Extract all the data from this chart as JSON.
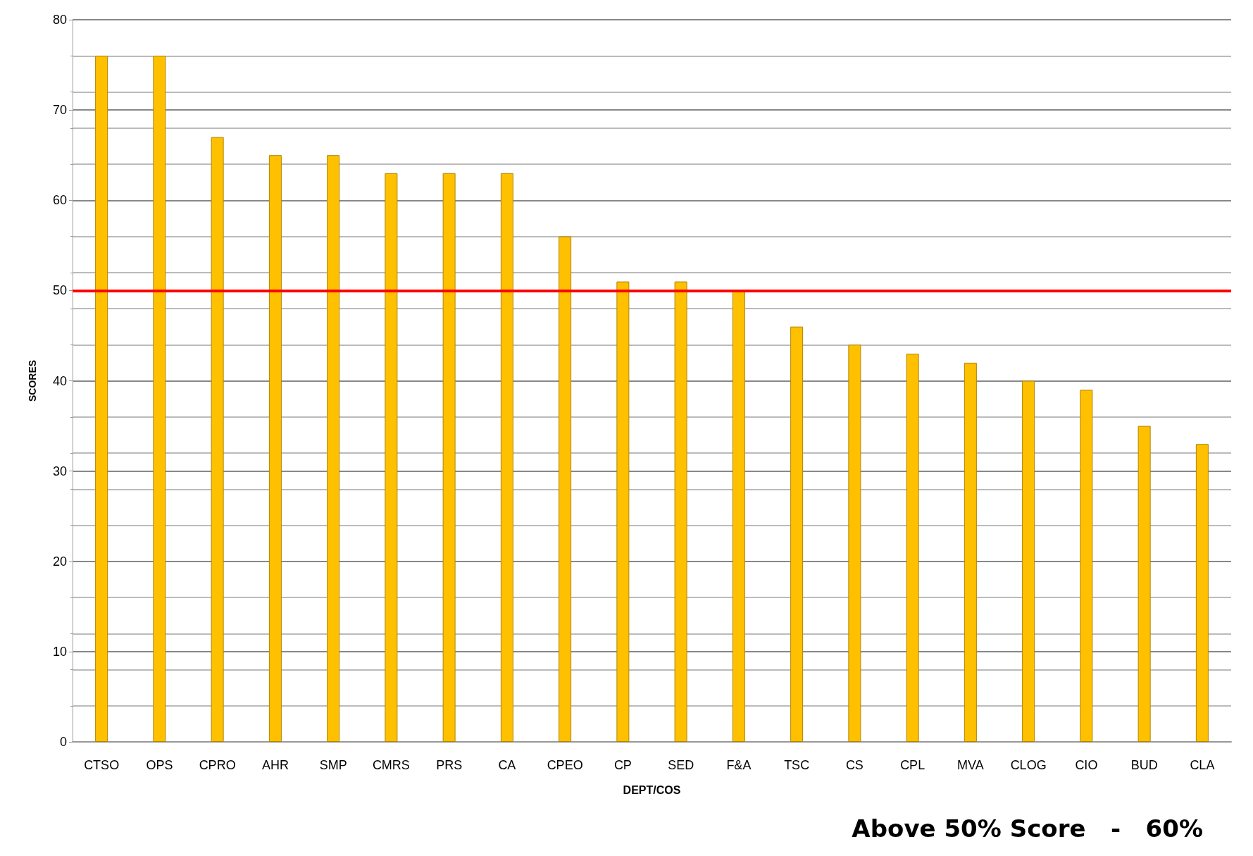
{
  "chart_data": {
    "type": "bar",
    "xlabel": "DEPT/COS",
    "ylabel": "SCORES",
    "categories": [
      "CTSO",
      "OPS",
      "CPRO",
      "AHR",
      "SMP",
      "CMRS",
      "PRS",
      "CA",
      "CPEO",
      "CP",
      "SED",
      "F&A",
      "TSC",
      "CS",
      "CPL",
      "MVA",
      "CLOG",
      "CIO",
      "BUD",
      "CLA"
    ],
    "values": [
      76,
      76,
      67,
      65,
      65,
      63,
      63,
      63,
      56,
      51,
      51,
      50,
      46,
      44,
      43,
      42,
      40,
      39,
      35,
      33
    ],
    "color": "#ffc000",
    "ylim": [
      0,
      80
    ],
    "yticks": [
      0,
      10,
      20,
      30,
      40,
      50,
      60,
      70,
      80
    ],
    "grid": "y",
    "ref_lines": [
      {
        "axis": "y",
        "value": 50,
        "color": "#ff0000"
      }
    ],
    "annotations": [
      "Above 50% Score   -   60%"
    ]
  }
}
